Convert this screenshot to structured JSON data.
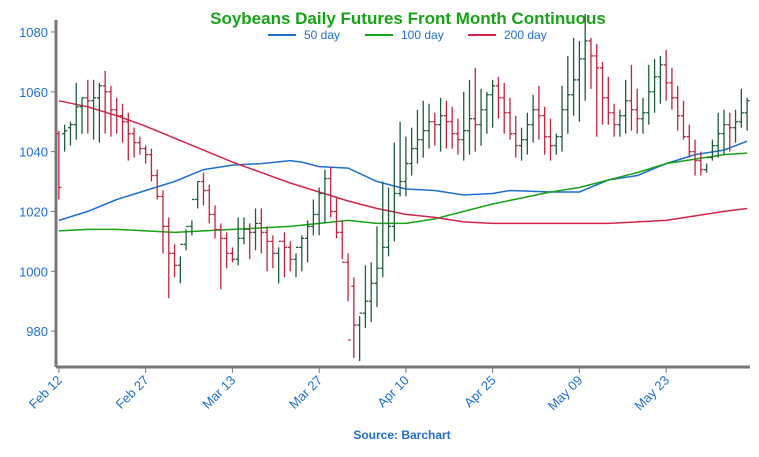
{
  "chart_data": {
    "type": "ohlc",
    "title": "Soybeans Daily Futures Front Month Continuous",
    "source": "Source: Barchart",
    "colors": {
      "title": "#17a317",
      "text": "#1f6fd1",
      "up_bar": "#1d5e3a",
      "down_bar": "#c0243c",
      "ma50": "#1f6fd1",
      "ma100": "#17a317",
      "ma200": "#d6254a",
      "axis": "#777777"
    },
    "xlabel": "",
    "ylabel": "",
    "ylim": [
      968,
      1084
    ],
    "y_ticks": [
      980,
      1000,
      1020,
      1040,
      1060,
      1080
    ],
    "x_ticks": [
      {
        "label": "Feb 12",
        "index": 0
      },
      {
        "label": "Feb 27",
        "index": 15
      },
      {
        "label": "Mar 13",
        "index": 30
      },
      {
        "label": "Mar 27",
        "index": 45
      },
      {
        "label": "Apr 10",
        "index": 60
      },
      {
        "label": "Apr 25",
        "index": 75
      },
      {
        "label": "May 09",
        "index": 90
      },
      {
        "label": "May 23",
        "index": 105
      }
    ],
    "x_range": [
      -0.5,
      119.5
    ],
    "legend": [
      {
        "name": "50 day",
        "key": "ma50"
      },
      {
        "name": "100 day",
        "key": "ma100"
      },
      {
        "name": "200 day",
        "key": "ma200"
      }
    ],
    "ohlc": {
      "open": [
        1046,
        1046,
        1048,
        1049,
        1055,
        1058,
        1057,
        1058,
        1062,
        1060,
        1054,
        1052,
        1050,
        1046,
        1043,
        1041,
        1039,
        1032,
        1025,
        1015,
        1006,
        1002,
        1009,
        1015,
        1024,
        1030,
        1027,
        1019,
        1014,
        1011,
        1006,
        1004,
        1011,
        1014,
        1013,
        1016,
        1013,
        1010,
        1006,
        1010,
        1008,
        1004,
        1008,
        1011,
        1015,
        1019,
        1026,
        1031,
        1020,
        1013,
        1003,
        995,
        982,
        986,
        990,
        996,
        1001,
        1008,
        1015,
        1026,
        1030,
        1036,
        1041,
        1044,
        1047,
        1050,
        1049,
        1052,
        1050,
        1046,
        1044,
        1047,
        1051,
        1049,
        1054,
        1059,
        1062,
        1058,
        1053,
        1046,
        1042,
        1044,
        1049,
        1054,
        1052,
        1045,
        1042,
        1045,
        1054,
        1059,
        1064,
        1071,
        1077,
        1072,
        1068,
        1058,
        1053,
        1049,
        1052,
        1057,
        1054,
        1051,
        1053,
        1060,
        1065,
        1069,
        1063,
        1058,
        1052,
        1045,
        1040,
        1037,
        1034,
        1038,
        1042,
        1046,
        1049,
        1048,
        1050,
        1053
      ],
      "high": [
        1047,
        1049,
        1050,
        1063,
        1058,
        1064,
        1064,
        1063,
        1067,
        1062,
        1058,
        1056,
        1053,
        1048,
        1045,
        1042,
        1041,
        1034,
        1027,
        1018,
        1009,
        1005,
        1014,
        1017,
        1030,
        1033,
        1029,
        1022,
        1016,
        1013,
        1008,
        1018,
        1018,
        1016,
        1021,
        1021,
        1015,
        1012,
        1008,
        1013,
        1010,
        1006,
        1012,
        1017,
        1024,
        1028,
        1034,
        1035,
        1025,
        1017,
        1006,
        998,
        985,
        1002,
        1003,
        1015,
        1030,
        1028,
        1043,
        1050,
        1045,
        1048,
        1054,
        1057,
        1056,
        1053,
        1058,
        1057,
        1055,
        1051,
        1060,
        1064,
        1068,
        1061,
        1060,
        1064,
        1065,
        1063,
        1058,
        1052,
        1048,
        1053,
        1059,
        1062,
        1055,
        1051,
        1046,
        1062,
        1072,
        1078,
        1077,
        1086,
        1078,
        1076,
        1070,
        1065,
        1056,
        1054,
        1064,
        1069,
        1061,
        1058,
        1069,
        1071,
        1072,
        1074,
        1068,
        1062,
        1057,
        1049,
        1044,
        1040,
        1036,
        1044,
        1053,
        1054,
        1053,
        1054,
        1061,
        1058
      ],
      "low": [
        1024,
        1040,
        1042,
        1044,
        1046,
        1046,
        1044,
        1043,
        1046,
        1045,
        1046,
        1043,
        1037,
        1038,
        1039,
        1036,
        1030,
        1024,
        1006,
        991,
        998,
        996,
        1007,
        1012,
        1021,
        1022,
        1016,
        1011,
        994,
        1001,
        1003,
        1002,
        1009,
        1004,
        1007,
        1006,
        1000,
        1001,
        996,
        998,
        1000,
        998,
        1000,
        1003,
        1012,
        1012,
        1016,
        1018,
        1011,
        1004,
        990,
        971,
        970,
        981,
        983,
        988,
        998,
        1005,
        1010,
        1025,
        1025,
        1032,
        1036,
        1038,
        1041,
        1042,
        1040,
        1041,
        1041,
        1039,
        1037,
        1039,
        1040,
        1042,
        1046,
        1048,
        1051,
        1046,
        1044,
        1038,
        1037,
        1039,
        1043,
        1044,
        1039,
        1037,
        1039,
        1040,
        1046,
        1052,
        1050,
        1057,
        1061,
        1045,
        1049,
        1049,
        1045,
        1045,
        1046,
        1047,
        1046,
        1046,
        1049,
        1053,
        1056,
        1057,
        1054,
        1047,
        1044,
        1038,
        1032,
        1032,
        1033,
        1037,
        1038,
        1039,
        1040,
        1043,
        1048,
        1047
      ],
      "close": [
        1028,
        1047,
        1049,
        1055,
        1058,
        1057,
        1058,
        1062,
        1060,
        1054,
        1052,
        1050,
        1046,
        1043,
        1041,
        1039,
        1032,
        1025,
        1015,
        1006,
        1002,
        1009,
        1015,
        1024,
        1030,
        1027,
        1019,
        1014,
        1011,
        1006,
        1004,
        1011,
        1014,
        1013,
        1016,
        1013,
        1010,
        1006,
        1010,
        1008,
        1004,
        1008,
        1011,
        1015,
        1019,
        1026,
        1031,
        1020,
        1013,
        1003,
        977,
        982,
        986,
        990,
        996,
        1001,
        1008,
        1015,
        1026,
        1030,
        1036,
        1041,
        1044,
        1047,
        1050,
        1049,
        1052,
        1050,
        1046,
        1044,
        1047,
        1051,
        1049,
        1054,
        1059,
        1062,
        1058,
        1053,
        1046,
        1042,
        1044,
        1049,
        1054,
        1052,
        1045,
        1042,
        1045,
        1054,
        1059,
        1064,
        1071,
        1077,
        1072,
        1068,
        1058,
        1053,
        1049,
        1052,
        1057,
        1054,
        1051,
        1053,
        1060,
        1065,
        1069,
        1063,
        1058,
        1052,
        1045,
        1040,
        1037,
        1034,
        1038,
        1042,
        1046,
        1049,
        1048,
        1050,
        1053,
        1057
      ]
    },
    "series": [
      {
        "key": "ma50",
        "name": "50 day",
        "points": [
          [
            0,
            1017
          ],
          [
            5,
            1020
          ],
          [
            10,
            1024
          ],
          [
            15,
            1027
          ],
          [
            20,
            1030
          ],
          [
            25,
            1034
          ],
          [
            30,
            1035.5
          ],
          [
            35,
            1036
          ],
          [
            40,
            1037
          ],
          [
            42,
            1036.5
          ],
          [
            45,
            1035
          ],
          [
            50,
            1034.5
          ],
          [
            55,
            1030
          ],
          [
            60,
            1027.5
          ],
          [
            65,
            1027
          ],
          [
            70,
            1025.5
          ],
          [
            75,
            1026
          ],
          [
            78,
            1027
          ],
          [
            85,
            1026.5
          ],
          [
            90,
            1026.5
          ],
          [
            95,
            1030.5
          ],
          [
            100,
            1032
          ],
          [
            105,
            1036
          ],
          [
            110,
            1039
          ],
          [
            115,
            1040.5
          ],
          [
            119,
            1043.5
          ]
        ]
      },
      {
        "key": "ma100",
        "name": "100 day",
        "points": [
          [
            0,
            1013.5
          ],
          [
            5,
            1014
          ],
          [
            10,
            1014
          ],
          [
            15,
            1013.5
          ],
          [
            20,
            1013
          ],
          [
            25,
            1013.5
          ],
          [
            30,
            1014
          ],
          [
            35,
            1014.5
          ],
          [
            40,
            1015
          ],
          [
            45,
            1016
          ],
          [
            50,
            1017
          ],
          [
            55,
            1016
          ],
          [
            60,
            1016
          ],
          [
            65,
            1017.5
          ],
          [
            70,
            1020
          ],
          [
            75,
            1022.5
          ],
          [
            80,
            1024.5
          ],
          [
            85,
            1026.5
          ],
          [
            90,
            1028
          ],
          [
            95,
            1030.5
          ],
          [
            100,
            1033
          ],
          [
            105,
            1036
          ],
          [
            110,
            1037.5
          ],
          [
            115,
            1039
          ],
          [
            119,
            1039.5
          ]
        ]
      },
      {
        "key": "ma200",
        "name": "200 day",
        "points": [
          [
            0,
            1057
          ],
          [
            5,
            1055
          ],
          [
            10,
            1052
          ],
          [
            15,
            1048.5
          ],
          [
            20,
            1044.5
          ],
          [
            25,
            1040.5
          ],
          [
            30,
            1036.5
          ],
          [
            35,
            1033
          ],
          [
            40,
            1029.5
          ],
          [
            45,
            1026.5
          ],
          [
            50,
            1023.5
          ],
          [
            55,
            1021
          ],
          [
            60,
            1019
          ],
          [
            65,
            1018
          ],
          [
            70,
            1016.5
          ],
          [
            75,
            1016
          ],
          [
            80,
            1016
          ],
          [
            85,
            1016
          ],
          [
            90,
            1016
          ],
          [
            95,
            1016
          ],
          [
            100,
            1016.5
          ],
          [
            105,
            1017
          ],
          [
            110,
            1018.5
          ],
          [
            115,
            1020
          ],
          [
            119,
            1021
          ]
        ]
      }
    ]
  }
}
